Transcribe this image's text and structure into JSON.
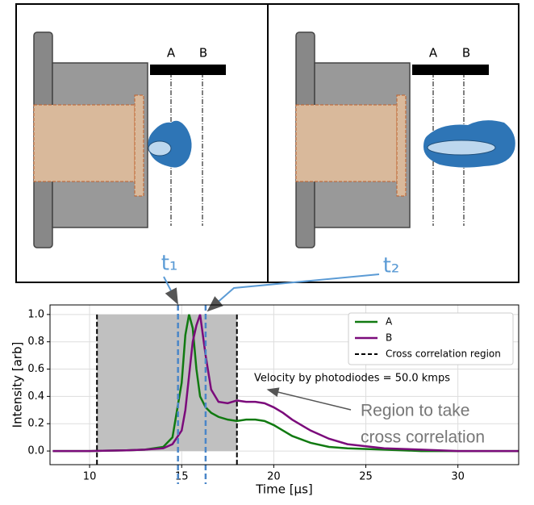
{
  "diagram": {
    "panels": [
      {
        "labels": [
          "A",
          "B"
        ]
      },
      {
        "labels": [
          "A",
          "B"
        ]
      }
    ]
  },
  "chart_data": {
    "type": "line",
    "xlabel": "Time [μs]",
    "ylabel": "Intensity [arb]",
    "x": [
      8,
      10,
      12,
      13,
      14,
      14.5,
      15,
      15.2,
      15.4,
      15.6,
      15.8,
      16,
      16.3,
      16.6,
      17,
      17.5,
      18,
      18.5,
      19,
      19.5,
      20,
      20.5,
      21,
      22,
      23,
      24,
      26,
      28,
      30,
      33.3
    ],
    "series": [
      {
        "name": "A",
        "color": "#117a11",
        "values": [
          0,
          0,
          0.005,
          0.01,
          0.03,
          0.1,
          0.5,
          0.85,
          1.0,
          0.9,
          0.6,
          0.4,
          0.32,
          0.28,
          0.25,
          0.23,
          0.22,
          0.23,
          0.23,
          0.22,
          0.19,
          0.15,
          0.11,
          0.06,
          0.03,
          0.02,
          0.01,
          0,
          0,
          0
        ]
      },
      {
        "name": "B",
        "color": "#7b0b7b",
        "values": [
          0,
          0,
          0.005,
          0.01,
          0.02,
          0.05,
          0.15,
          0.3,
          0.55,
          0.8,
          0.92,
          1.0,
          0.7,
          0.45,
          0.36,
          0.35,
          0.37,
          0.36,
          0.36,
          0.35,
          0.32,
          0.28,
          0.23,
          0.15,
          0.09,
          0.05,
          0.02,
          0.01,
          0,
          0
        ]
      }
    ],
    "region": {
      "name": "Cross correlation region",
      "x": [
        10.4,
        18.0
      ],
      "y": [
        0,
        1
      ],
      "color": "#c0c0c0"
    },
    "markers": [
      {
        "label": "t₁",
        "x": 14.8
      },
      {
        "label": "t₂",
        "x": 16.3
      }
    ],
    "annotations": {
      "velocity": "Velocity by photodiodes = 50.0 kmps",
      "note": [
        "Region to take",
        "cross correlation"
      ]
    },
    "xlim": [
      7.85,
      33.3
    ],
    "ylim": [
      -0.1,
      1.07
    ],
    "xticks": [
      10,
      15,
      20,
      25,
      30
    ],
    "yticks": [
      {
        "value": 0,
        "label": "0.0"
      },
      0.2,
      0.4,
      0.6,
      0.8,
      {
        "value": 1,
        "label": "1.0"
      }
    ],
    "grid": true,
    "legend": "upper right"
  }
}
